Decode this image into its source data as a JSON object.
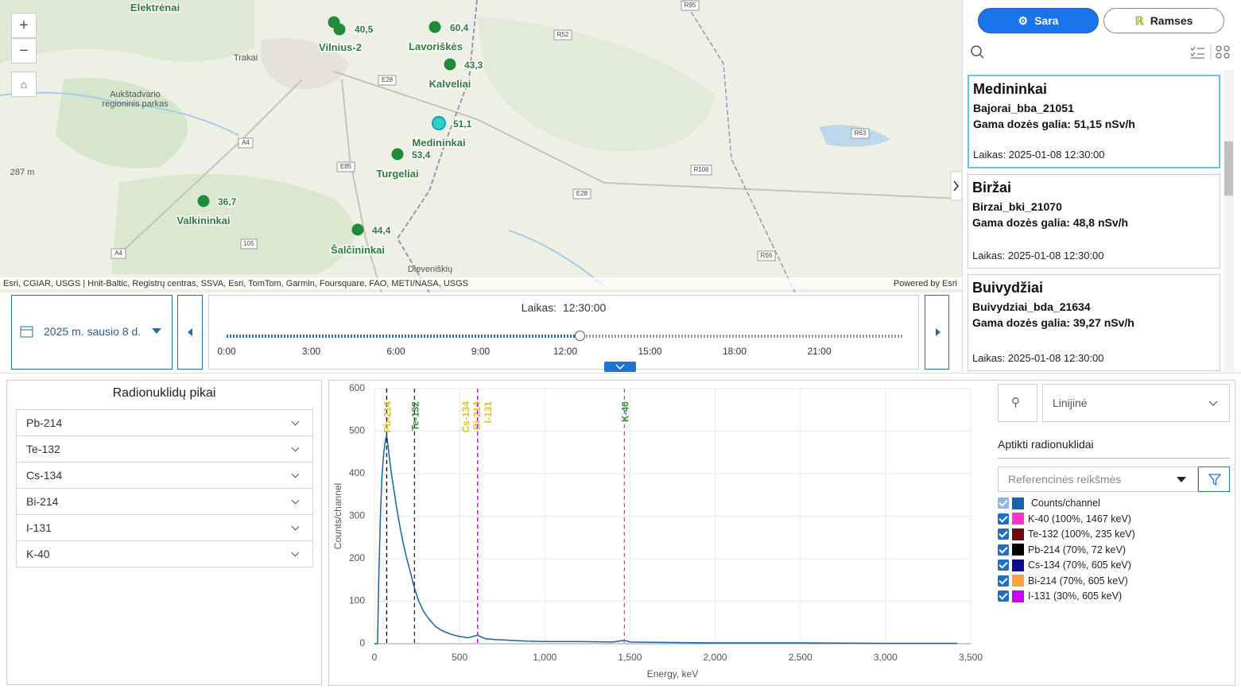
{
  "map": {
    "stations": [
      {
        "name": "Vilnius-2",
        "value": "40,5"
      },
      {
        "name": "Lavoriškės",
        "value": "60,4"
      },
      {
        "name": "Kalveliai",
        "value": "43,3"
      },
      {
        "name": "Medininkai",
        "value": "51,1"
      },
      {
        "name": "Turgeliai",
        "value": "53,4"
      },
      {
        "name": "Valkininkai",
        "value": "36,7"
      },
      {
        "name": "Šalčininkai",
        "value": "44,4"
      }
    ],
    "places": [
      "Elektrėnai",
      "Trakai",
      "Aukštadvario",
      "regioninis parkas",
      "287 m",
      "Dieveniškių"
    ],
    "roads": [
      "R95",
      "R52",
      "E28",
      "A4",
      "E85",
      "R106",
      "R63",
      "E28",
      "105",
      "A4",
      "R56"
    ],
    "attribution": "Esri, CGIAR, USGS | Hnit-Baltic, Registrų centras, SSVA, Esri, TomTom, Garmin, Foursquare, FAO, METI/NASA, USGS",
    "powered_by": "Powered by Esri"
  },
  "panel": {
    "tabs": [
      "Sara",
      "Ramses"
    ],
    "cards": [
      {
        "title": "Medininkai",
        "station": "Bajorai_bba_21051",
        "dose": "Gama dozės galia: 51,15 nSv/h",
        "time": "Laikas: 2025-01-08 12:30:00"
      },
      {
        "title": "Biržai",
        "station": "Birzai_bki_21070",
        "dose": "Gama dozės galia: 48,8 nSv/h",
        "time": "Laikas: 2025-01-08 12:30:00"
      },
      {
        "title": "Buivydžiai",
        "station": "Buivydziai_bda_21634",
        "dose": "Gama dozės galia: 39,27 nSv/h",
        "time": "Laikas: 2025-01-08 12:30:00"
      }
    ]
  },
  "timeline": {
    "date": "2025 m. sausio 8 d.",
    "time_label": "Laikas:",
    "time": "12:30:00",
    "ticks": [
      "0:00",
      "3:00",
      "6:00",
      "9:00",
      "12:00",
      "15:00",
      "18:00",
      "21:00"
    ]
  },
  "peaks_panel": {
    "title": "Radionuklidų pikai",
    "items": [
      "Pb-214",
      "Te-132",
      "Cs-134",
      "Bi-214",
      "I-131",
      "K-40"
    ]
  },
  "controls": {
    "scale": "Linijinė",
    "detected_title": "Aptikti radionuklidai",
    "reference": "Referencinės reikšmės"
  },
  "chart_data": {
    "type": "line",
    "xlabel": "Energy, keV",
    "ylabel": "Counts/channel",
    "xlim": [
      0,
      3500
    ],
    "ylim": [
      0,
      600
    ],
    "xticks": [
      0,
      500,
      {
        "value": 1000,
        "label": "1,000"
      },
      {
        "value": 1500,
        "label": "1,500"
      },
      {
        "value": 2000,
        "label": "2,000"
      },
      {
        "value": 2500,
        "label": "2,500"
      },
      {
        "value": 3000,
        "label": "3,000"
      },
      {
        "value": 3500,
        "label": "3,500"
      }
    ],
    "yticks": [
      0,
      100,
      200,
      300,
      400,
      500,
      600
    ],
    "grid": true,
    "series": [
      {
        "name": "Counts/channel",
        "color": "#1763ad",
        "x": [
          0,
          18,
          25,
          35,
          45,
          55,
          65,
          72,
          80,
          90,
          100,
          115,
          130,
          150,
          170,
          190,
          210,
          235,
          260,
          290,
          320,
          360,
          400,
          450,
          500,
          550,
          605,
          650,
          700,
          800,
          900,
          1000,
          1200,
          1400,
          1467,
          1500,
          1700,
          2000,
          2500,
          3000,
          3420
        ],
        "values": [
          0,
          0,
          150,
          300,
          400,
          450,
          480,
          490,
          465,
          430,
          400,
          360,
          320,
          275,
          235,
          200,
          170,
          130,
          100,
          75,
          58,
          40,
          30,
          22,
          17,
          14,
          20,
          12,
          10,
          8,
          6,
          5,
          5,
          4,
          8,
          4,
          3,
          2,
          2,
          1,
          1
        ]
      }
    ],
    "peaks": [
      {
        "name": "K-40 (100%, 1467 keV)",
        "label": "K-40",
        "energy": 1467,
        "color": "#ff33cc",
        "label_color": "#2e9a3a"
      },
      {
        "name": "Te-132 (100%, 235 keV)",
        "label": "Te-132",
        "energy": 235,
        "color": "#6b0a12",
        "label_color": "#2e9a3a"
      },
      {
        "name": "Pb-214 (70%, 72 keV)",
        "label": "Pb-214",
        "energy": 72,
        "color": "#000000",
        "label_color": "#e2c21c"
      },
      {
        "name": "Cs-134 (70%, 605 keV)",
        "label": "Cs-134",
        "energy": 605,
        "color": "#0c0c8a",
        "label_color": "#e2c21c"
      },
      {
        "name": "Bi-214 (70%, 605 keV)",
        "label": "Bi-214",
        "energy": 605,
        "color": "#ffa040",
        "label_color": "#e2c21c"
      },
      {
        "name": "I-131 (30%, 605 keV)",
        "label": "I-131",
        "energy": 605,
        "color": "#cc00ff",
        "label_color": "#e2c21c"
      }
    ]
  }
}
